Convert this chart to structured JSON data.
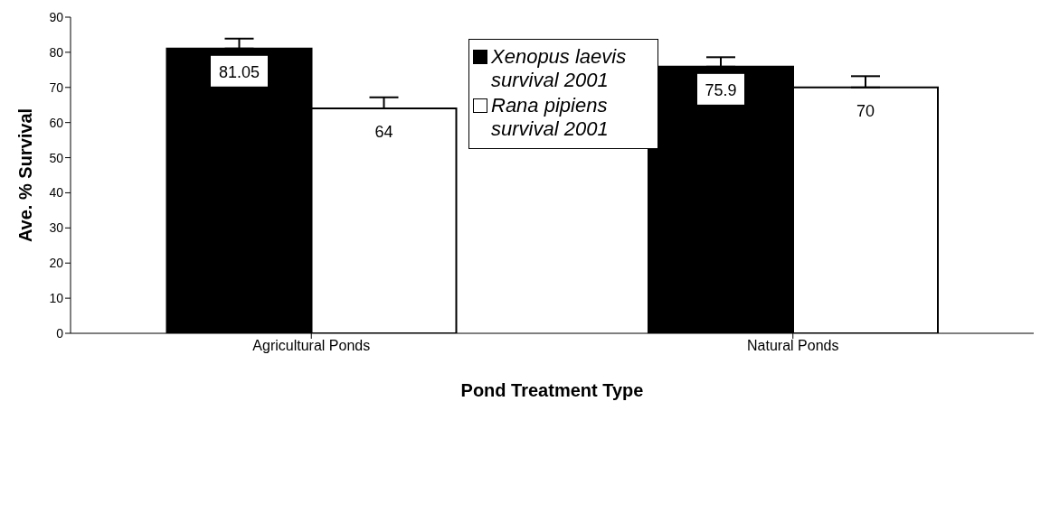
{
  "chart_data": {
    "type": "bar",
    "xlabel": "Pond Treatment Type",
    "ylabel": "Ave. % Survival",
    "categories": [
      "Agricultural Ponds",
      "Natural Ponds"
    ],
    "series": [
      {
        "name": "Xenopus laevis survival 2001",
        "color": "#000000",
        "values": [
          81.05,
          75.9
        ],
        "errors": [
          [
            81.05,
            83.9
          ],
          [
            75.9,
            78.6
          ]
        ]
      },
      {
        "name": "Rana pipiens survival 2001",
        "color": "#ffffff",
        "values": [
          64,
          70
        ],
        "errors": [
          [
            64,
            67.2
          ],
          [
            70,
            73.2
          ]
        ]
      }
    ],
    "ylim": [
      0,
      90
    ],
    "yticks": [
      0,
      10,
      20,
      30,
      40,
      50,
      60,
      70,
      80,
      90
    ],
    "data_labels": true,
    "legend": "top"
  }
}
